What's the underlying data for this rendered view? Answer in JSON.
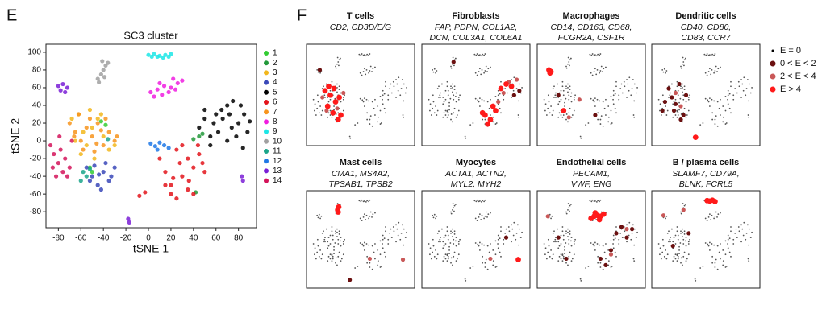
{
  "chart_data": [
    {
      "type": "scatter",
      "panel_label": "E",
      "title": "SC3 cluster",
      "x_label": "tSNE 1",
      "y_label": "tSNE 2",
      "xlim": [
        -91,
        96
      ],
      "ylim": [
        -98,
        109
      ],
      "xticks": [
        -80,
        -60,
        -40,
        -20,
        0,
        20,
        40,
        60,
        80
      ],
      "yticks": [
        -80,
        -60,
        -40,
        -20,
        0,
        20,
        40,
        60,
        80,
        100
      ],
      "series": [
        {
          "name": "1",
          "color": "#33cc33",
          "x": [
            -52,
            -50,
            -42,
            -38
          ],
          "y": [
            -30,
            -35,
            22,
            18
          ]
        },
        {
          "name": "2",
          "color": "#22993a",
          "x": [
            45,
            48,
            42,
            40
          ],
          "y": [
            5,
            8,
            -58,
            2
          ]
        },
        {
          "name": "3",
          "color": "#f2b71c",
          "x": [
            -68,
            -62,
            -58,
            -55,
            -50,
            -45,
            -40,
            -35,
            -60,
            -48,
            -65,
            -42,
            -52,
            -30
          ],
          "y": [
            25,
            30,
            10,
            -5,
            15,
            25,
            5,
            -10,
            -15,
            -20,
            0,
            30,
            35,
            -5
          ]
        },
        {
          "name": "4",
          "color": "#3a48b8",
          "x": [
            -55,
            -50,
            -45,
            -40,
            -35,
            -30,
            -48,
            -42,
            -38,
            -52,
            -44,
            -33
          ],
          "y": [
            -30,
            -40,
            -50,
            -35,
            -45,
            -30,
            -28,
            -55,
            -25,
            -45,
            -38,
            -40
          ]
        },
        {
          "name": "5",
          "color": "#000000",
          "x": [
            45,
            50,
            55,
            60,
            65,
            70,
            75,
            80,
            85,
            88,
            55,
            62,
            70,
            78,
            84,
            58,
            66,
            74,
            82,
            50,
            90,
            72
          ],
          "y": [
            15,
            25,
            5,
            30,
            35,
            40,
            45,
            20,
            30,
            10,
            -5,
            10,
            0,
            5,
            -8,
            20,
            25,
            15,
            40,
            35,
            22,
            30
          ]
        },
        {
          "name": "6",
          "color": "#e3141b",
          "x": [
            10,
            15,
            20,
            25,
            30,
            35,
            40,
            45,
            50,
            20,
            28,
            36,
            44,
            15,
            25,
            35,
            30,
            40,
            -8,
            -3,
            22,
            48
          ],
          "y": [
            -20,
            -35,
            -50,
            -10,
            -40,
            -55,
            -30,
            -15,
            -35,
            -60,
            -25,
            -45,
            -5,
            -50,
            -65,
            -20,
            -5,
            -60,
            -62,
            -58,
            -42,
            -25
          ]
        },
        {
          "name": "7",
          "color": "#f7941d",
          "x": [
            -70,
            -65,
            -60,
            -55,
            -50,
            -45,
            -40,
            -35,
            -30,
            -58,
            -48,
            -38,
            -62,
            -52,
            -42,
            -28,
            -66,
            -46
          ],
          "y": [
            20,
            10,
            0,
            15,
            5,
            20,
            -5,
            10,
            0,
            -10,
            -12,
            25,
            30,
            25,
            12,
            5,
            5,
            -3
          ]
        },
        {
          "name": "8",
          "color": "#f01de0",
          "x": [
            2,
            8,
            14,
            20,
            26,
            30,
            5,
            12,
            18,
            24,
            10,
            22
          ],
          "y": [
            55,
            58,
            62,
            60,
            65,
            68,
            50,
            52,
            55,
            58,
            65,
            70
          ]
        },
        {
          "name": "9",
          "color": "#1ce6e6",
          "x": [
            0,
            5,
            10,
            15,
            20,
            3,
            8,
            13,
            18
          ],
          "y": [
            97,
            98,
            96,
            97,
            98,
            95,
            95,
            94,
            95
          ]
        },
        {
          "name": "10",
          "color": "#a0a0a0",
          "x": [
            -45,
            -42,
            -40,
            -38,
            -36,
            -44,
            -39,
            -41
          ],
          "y": [
            70,
            75,
            80,
            85,
            88,
            66,
            72,
            90
          ]
        },
        {
          "name": "11",
          "color": "#1aa58a",
          "x": [
            -58,
            -55,
            -52,
            -60,
            -36
          ],
          "y": [
            -35,
            -40,
            -32,
            -45,
            2
          ]
        },
        {
          "name": "12",
          "color": "#1f78e6",
          "x": [
            2,
            6,
            10,
            14,
            18,
            8
          ],
          "y": [
            -3,
            -6,
            -2,
            -5,
            -8,
            -10
          ]
        },
        {
          "name": "13",
          "color": "#7a1fd6",
          "x": [
            -80,
            -76,
            -72,
            -78,
            -74,
            -18,
            -17,
            83,
            84
          ],
          "y": [
            62,
            64,
            60,
            57,
            55,
            -88,
            -92,
            -40,
            -45
          ]
        },
        {
          "name": "14",
          "color": "#d4145a",
          "x": [
            -87,
            -84,
            -80,
            -76,
            -72,
            -68,
            -82,
            -78,
            -74,
            -70,
            -85,
            -79
          ],
          "y": [
            -5,
            -15,
            -25,
            -35,
            -40,
            0,
            -40,
            -10,
            -20,
            -30,
            -30,
            5
          ]
        }
      ]
    },
    {
      "type": "feature",
      "panel_label": "F",
      "legend": [
        {
          "label": "E = 0",
          "color": "#000000"
        },
        {
          "label": "0 < E < 2",
          "color": "#6b1010"
        },
        {
          "label": "2 < E < 4",
          "color": "#c95858"
        },
        {
          "label": "E > 4",
          "color": "#ff1a1a"
        }
      ],
      "panels": [
        {
          "title": "T cells",
          "genes": [
            "CD2, CD3D/E/G"
          ],
          "levels": [
            {
              "x": [],
              "y": []
            },
            {
              "x": [
                -75
              ],
              "y": [
                62
              ]
            },
            {
              "x": [
                -70,
                -30,
                -62,
                -42
              ],
              "y": [
                0,
                10,
                -30,
                -25
              ]
            },
            {
              "x": [
                -65,
                -55,
                -45,
                -35,
                -60,
                -50,
                -40,
                -48,
                -38,
                -58
              ],
              "y": [
                15,
                5,
                -10,
                -40,
                -20,
                -35,
                -50,
                20,
                0,
                25
              ]
            }
          ]
        },
        {
          "title": "Fibroblasts",
          "genes": [
            "FAP, PDPN, COL1A2,",
            "DCN, COL3A1, COL6A1"
          ],
          "levels": [
            {
              "x": [],
              "y": []
            },
            {
              "x": [
                75,
                85,
                -40
              ],
              "y": [
                5,
                15,
                80
              ]
            },
            {
              "x": [
                55,
                65,
                80,
                45
              ],
              "y": [
                10,
                35,
                40,
                -10
              ]
            },
            {
              "x": [
                20,
                30,
                40,
                25,
                35,
                15,
                50,
                60,
                70
              ],
              "y": [
                -40,
                -50,
                -30,
                -60,
                -20,
                -35,
                20,
                30,
                25
              ]
            }
          ]
        },
        {
          "title": "Macrophages",
          "genes": [
            "CD14, CD163, CD68,",
            "FCGR2A, CSF1R"
          ],
          "levels": [
            {
              "x": [],
              "y": []
            },
            {
              "x": [
                -60,
                10
              ],
              "y": [
                5,
                -40
              ]
            },
            {
              "x": [
                -40,
                -20
              ],
              "y": [
                -45,
                -5
              ]
            },
            {
              "x": [
                -78,
                -74,
                -76,
                -50
              ],
              "y": [
                62,
                58,
                55,
                -30
              ]
            }
          ]
        },
        {
          "title": "Dendritic cells",
          "genes": [
            "CD40, CD80,",
            "CD83, CCR7"
          ],
          "levels": [
            {
              "x": [],
              "y": []
            },
            {
              "x": [
                -68,
                -62,
                -55,
                -48,
                -40,
                -35,
                -58,
                -45,
                -75,
                -80
              ],
              "y": [
                20,
                0,
                -15,
                30,
                -40,
                5,
                -30,
                -50,
                -10,
                -30
              ]
            },
            {
              "x": [
                -55,
                -45
              ],
              "y": [
                10,
                -20
              ]
            },
            {
              "x": [
                -17
              ],
              "y": [
                -90
              ]
            }
          ]
        },
        {
          "title": "Mast cells",
          "genes": [
            "CMA1, MS4A2,",
            "TPSAB1, TPSB2"
          ],
          "levels": [
            {
              "x": [],
              "y": []
            },
            {
              "x": [
                -18
              ],
              "y": [
                -90
              ]
            },
            {
              "x": [
                20,
                83
              ],
              "y": [
                -40,
                -42
              ]
            },
            {
              "x": [
                -41,
                -39,
                -40
              ],
              "y": [
                75,
                82,
                70
              ]
            }
          ]
        },
        {
          "title": "Myocytes",
          "genes": [
            "ACTA1, ACTN2,",
            "MYL2, MYH2"
          ],
          "levels": [
            {
              "x": [],
              "y": []
            },
            {
              "x": [
                60
              ],
              "y": [
                10
              ]
            },
            {
              "x": [
                30
              ],
              "y": [
                -40
              ]
            },
            {
              "x": [
                83
              ],
              "y": [
                -42
              ]
            }
          ]
        },
        {
          "title": "Endothelial cells",
          "genes": [
            "PECAM1,",
            "VWF, ENG"
          ],
          "levels": [
            {
              "x": [],
              "y": []
            },
            {
              "x": [
                50,
                60,
                70,
                80,
                20,
                30,
                40,
                -60,
                -45
              ],
              "y": [
                20,
                35,
                10,
                30,
                -40,
                -55,
                -20,
                10,
                -40
              ]
            },
            {
              "x": [
                -80,
                40,
                70
              ],
              "y": [
                60,
                -30,
                30
              ]
            },
            {
              "x": [
                2,
                8,
                14,
                20,
                26,
                10,
                18
              ],
              "y": [
                55,
                60,
                62,
                60,
                65,
                68,
                52
              ]
            }
          ]
        },
        {
          "title": "B / plasma cells",
          "genes": [
            "SLAMF7, CD79A,",
            "BLNK, FCRL5"
          ],
          "levels": [
            {
              "x": [],
              "y": []
            },
            {
              "x": [
                -60,
                -30
              ],
              "y": [
                -10,
                20
              ]
            },
            {
              "x": [
                -78,
                -40
              ],
              "y": [
                62,
                75
              ]
            },
            {
              "x": [
                5,
                10,
                15,
                20
              ],
              "y": [
                97,
                96,
                98,
                95
              ]
            }
          ]
        }
      ]
    }
  ]
}
